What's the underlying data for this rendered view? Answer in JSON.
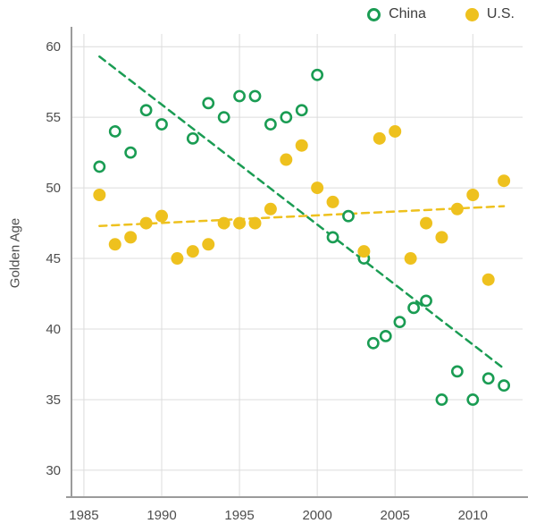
{
  "chart_data": {
    "type": "scatter",
    "title": "",
    "xlabel": "",
    "ylabel": "Golden Age",
    "xlim": [
      1984.2,
      2013.2
    ],
    "ylim": [
      28.6,
      60.9
    ],
    "yticks": [
      30,
      35,
      40,
      45,
      50,
      55,
      60
    ],
    "xticks": [
      1985,
      1990,
      1995,
      2000,
      2005,
      2010
    ],
    "grid": true,
    "legend_position": "top-right",
    "colors": {
      "grid": "#dcdcdc",
      "axis": "#9b9b9b",
      "tick_text": "#4d4d4d",
      "china": "#1a9c53",
      "us": "#eec11e"
    },
    "legend": [
      {
        "name": "China",
        "marker": "open-circle",
        "color": "#1a9c53"
      },
      {
        "name": "U.S.",
        "marker": "filled-circle",
        "color": "#eec11e"
      }
    ],
    "series": [
      {
        "name": "China",
        "marker": "open",
        "color": "#1a9c53",
        "points": [
          [
            1986,
            51.5
          ],
          [
            1987,
            54
          ],
          [
            1988,
            52.5
          ],
          [
            1989,
            55.5
          ],
          [
            1990,
            54.5
          ],
          [
            1992,
            53.5
          ],
          [
            1993,
            56
          ],
          [
            1994,
            55
          ],
          [
            1995,
            56.5
          ],
          [
            1996,
            56.5
          ],
          [
            1997,
            54.5
          ],
          [
            1998,
            55
          ],
          [
            1999,
            55.5
          ],
          [
            2000,
            58
          ],
          [
            2001,
            46.5
          ],
          [
            2002,
            48
          ],
          [
            2003,
            45
          ],
          [
            2003.6,
            39
          ],
          [
            2004.4,
            39.5
          ],
          [
            2005.3,
            40.5
          ],
          [
            2006.2,
            41.5
          ],
          [
            2007,
            42
          ],
          [
            2008,
            35
          ],
          [
            2009,
            37
          ],
          [
            2010,
            35
          ],
          [
            2011,
            36.5
          ],
          [
            2012,
            36
          ]
        ],
        "trend": {
          "start": [
            1986,
            59.3
          ],
          "end": [
            2012,
            37.2
          ]
        }
      },
      {
        "name": "U.S.",
        "marker": "filled",
        "color": "#eec11e",
        "points": [
          [
            1986,
            49.5
          ],
          [
            1987,
            46
          ],
          [
            1988,
            46.5
          ],
          [
            1989,
            47.5
          ],
          [
            1990,
            48
          ],
          [
            1991,
            45
          ],
          [
            1992,
            45.5
          ],
          [
            1993,
            46
          ],
          [
            1994,
            47.5
          ],
          [
            1995,
            47.5
          ],
          [
            1996,
            47.5
          ],
          [
            1997,
            48.5
          ],
          [
            1998,
            52
          ],
          [
            1999,
            53
          ],
          [
            2000,
            50
          ],
          [
            2001,
            49
          ],
          [
            2003,
            45.5
          ],
          [
            2004,
            53.5
          ],
          [
            2005,
            54
          ],
          [
            2006,
            45
          ],
          [
            2007,
            47.5
          ],
          [
            2008,
            46.5
          ],
          [
            2009,
            48.5
          ],
          [
            2010,
            49.5
          ],
          [
            2011,
            43.5
          ],
          [
            2012,
            50.5
          ]
        ],
        "trend": {
          "start": [
            1986,
            47.3
          ],
          "end": [
            2012,
            48.7
          ]
        }
      }
    ]
  }
}
